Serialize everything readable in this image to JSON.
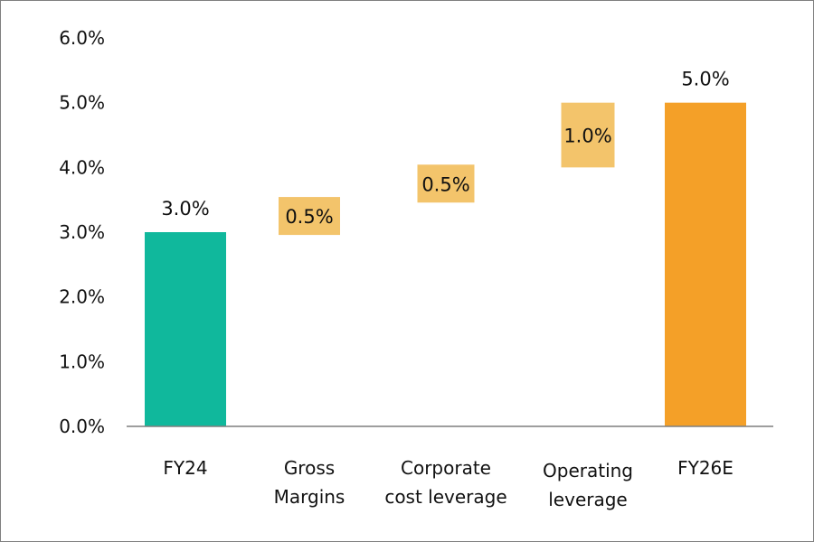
{
  "chart_data": {
    "type": "bar",
    "subtype": "waterfall",
    "title": "",
    "xlabel": "",
    "ylabel": "",
    "ylim": [
      0,
      6
    ],
    "yticks": [
      0,
      1,
      2,
      3,
      4,
      5,
      6
    ],
    "ytick_labels": [
      "0.0%",
      "1.0%",
      "2.0%",
      "3.0%",
      "4.0%",
      "5.0%",
      "6.0%"
    ],
    "grid": false,
    "legend": "none",
    "categories": [
      [
        "FY24"
      ],
      [
        "Gross",
        "Margins"
      ],
      [
        "Corporate",
        "cost leverage"
      ],
      [
        "Operating",
        "leverage"
      ],
      [
        "FY26E"
      ]
    ],
    "bars": [
      {
        "kind": "total",
        "start": 0,
        "end": 3.0,
        "label": "3.0%",
        "color": "#10b89c"
      },
      {
        "kind": "increment",
        "start": 3.0,
        "end": 3.5,
        "label": "0.5%",
        "color": "#f3c46b"
      },
      {
        "kind": "increment",
        "start": 3.5,
        "end": 4.0,
        "label": "0.5%",
        "color": "#f3c46b"
      },
      {
        "kind": "increment",
        "start": 4.0,
        "end": 5.0,
        "label": "1.0%",
        "color": "#f3c46b"
      },
      {
        "kind": "total",
        "start": 0,
        "end": 5.0,
        "label": "5.0%",
        "color": "#f4a028"
      }
    ],
    "values": [
      3.0,
      0.5,
      0.5,
      1.0,
      5.0
    ]
  }
}
